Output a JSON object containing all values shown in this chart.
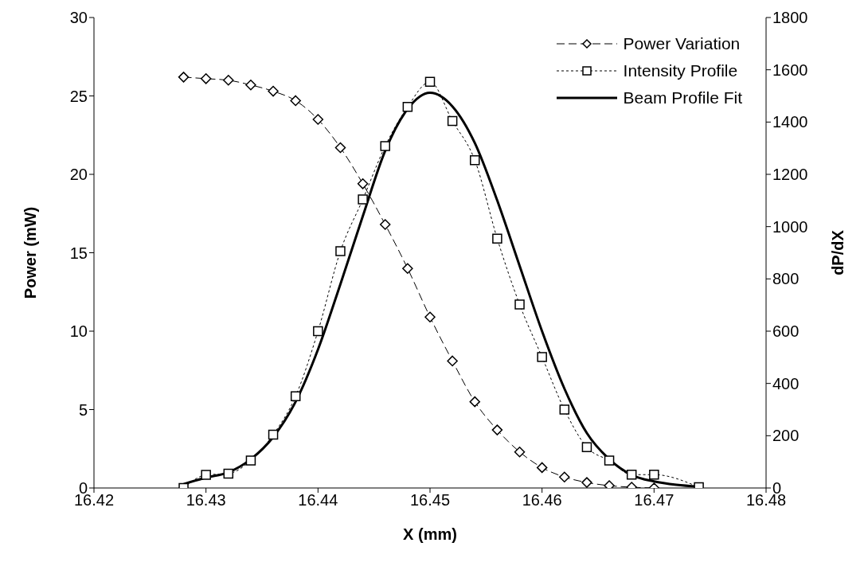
{
  "chart_data": {
    "type": "line",
    "xlabel": "X (mm)",
    "ylabel": "Power (mW)",
    "y2label": "dP/dX",
    "xlim": [
      16.42,
      16.48
    ],
    "xticks": [
      16.42,
      16.43,
      16.44,
      16.45,
      16.46,
      16.47,
      16.48
    ],
    "ylim": [
      0,
      30
    ],
    "yticks": [
      0,
      5,
      10,
      15,
      20,
      25,
      30
    ],
    "y2lim": [
      0,
      1800
    ],
    "y2ticks": [
      0,
      200,
      400,
      600,
      800,
      1000,
      1200,
      1400,
      1600,
      1800
    ],
    "legend": "top right",
    "series": [
      {
        "name": "Power Variation",
        "color": "#000000",
        "marker": "diamond",
        "line_style": "dashed",
        "x": [
          16.428,
          16.43,
          16.432,
          16.434,
          16.436,
          16.438,
          16.44,
          16.442,
          16.444,
          16.446,
          16.448,
          16.45,
          16.452,
          16.454,
          16.456,
          16.458,
          16.46,
          16.462,
          16.464,
          16.466,
          16.468,
          16.47
        ],
        "values": [
          26.2,
          26.1,
          26.0,
          25.7,
          25.3,
          24.7,
          23.5,
          21.7,
          19.4,
          16.8,
          14.0,
          10.9,
          8.1,
          5.5,
          3.7,
          2.3,
          1.3,
          0.7,
          0.35,
          0.15,
          0.05,
          0.0
        ]
      },
      {
        "name": "Intensity Profile",
        "color": "#000000",
        "marker": "square",
        "line_style": "dotted",
        "axis": "y2",
        "x": [
          16.428,
          16.43,
          16.432,
          16.434,
          16.436,
          16.438,
          16.44,
          16.442,
          16.444,
          16.446,
          16.448,
          16.45,
          16.452,
          16.454,
          16.456,
          16.458,
          16.46,
          16.462,
          16.464,
          16.466,
          16.468,
          16.47,
          16.474
        ],
        "values": [
          0,
          50,
          55,
          105,
          204,
          351,
          600,
          906,
          1104,
          1308,
          1458,
          1554,
          1404,
          1254,
          954,
          702,
          501,
          300,
          156,
          105,
          51,
          51,
          3
        ]
      },
      {
        "name": "Beam Profile Fit",
        "color": "#000000",
        "marker": "none",
        "line_style": "solid",
        "axis": "y2",
        "x": [
          16.428,
          16.43,
          16.432,
          16.434,
          16.436,
          16.438,
          16.44,
          16.442,
          16.444,
          16.446,
          16.448,
          16.45,
          16.452,
          16.454,
          16.456,
          16.458,
          16.46,
          16.462,
          16.464,
          16.466,
          16.468,
          16.47,
          16.472,
          16.474
        ],
        "values": [
          15,
          40,
          60,
          110,
          195,
          330,
          530,
          780,
          1040,
          1290,
          1450,
          1512,
          1460,
          1320,
          1100,
          850,
          600,
          380,
          210,
          110,
          50,
          25,
          12,
          5
        ]
      }
    ]
  }
}
